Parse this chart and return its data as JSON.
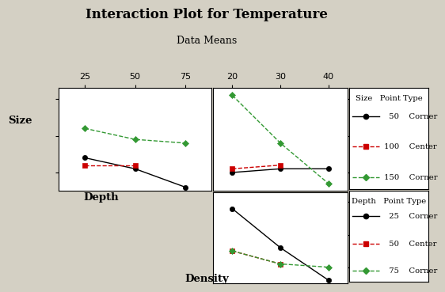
{
  "title": "Interaction Plot for Temperature",
  "subtitle": "Data Means",
  "xlabel": "Density",
  "ylabel_left": "Size",
  "ylabel_mid": "Depth",
  "bg_color": "#d4d0c4",
  "top_left": {
    "xlabel_vals": [
      25,
      50,
      75
    ],
    "xlim": [
      12,
      88
    ],
    "ylim": [
      52.5,
      66.5
    ],
    "yticks": [
      55,
      60,
      65
    ],
    "series": [
      {
        "color": "#000000",
        "ls": "-",
        "marker": "o",
        "x": [
          25,
          50,
          75
        ],
        "y": [
          57.0,
          55.5,
          53.0
        ]
      },
      {
        "color": "#cc0000",
        "ls": "--",
        "marker": "s",
        "x": [
          25,
          50
        ],
        "y": [
          56.0,
          56.0
        ]
      },
      {
        "color": "#339933",
        "ls": "--",
        "marker": "D",
        "x": [
          25,
          50,
          75
        ],
        "y": [
          61.0,
          59.5,
          59.0
        ]
      }
    ]
  },
  "top_right": {
    "xlabel_vals": [
      20,
      30,
      40
    ],
    "xlim": [
      16,
      44
    ],
    "ylim": [
      52.5,
      66.5
    ],
    "yticks": [
      55,
      60,
      65
    ],
    "series": [
      {
        "color": "#000000",
        "ls": "-",
        "marker": "o",
        "x": [
          20,
          30,
          40
        ],
        "y": [
          55.0,
          55.5,
          55.5
        ]
      },
      {
        "color": "#cc0000",
        "ls": "--",
        "marker": "s",
        "x": [
          20,
          30
        ],
        "y": [
          55.5,
          56.0
        ]
      },
      {
        "color": "#339933",
        "ls": "--",
        "marker": "D",
        "x": [
          20,
          30,
          40
        ],
        "y": [
          65.5,
          59.0,
          53.5
        ]
      }
    ]
  },
  "bot_right": {
    "xlabel_vals": [
      20,
      30,
      40
    ],
    "xlim": [
      16,
      44
    ],
    "ylim": [
      52.5,
      66.5
    ],
    "yticks": [
      55,
      60,
      65
    ],
    "series": [
      {
        "color": "#000000",
        "ls": "-",
        "marker": "o",
        "x": [
          20,
          30,
          40
        ],
        "y": [
          64.0,
          58.0,
          53.0
        ]
      },
      {
        "color": "#cc0000",
        "ls": "--",
        "marker": "s",
        "x": [
          20,
          30
        ],
        "y": [
          57.5,
          55.5
        ]
      },
      {
        "color": "#339933",
        "ls": "--",
        "marker": "D",
        "x": [
          20,
          30,
          40
        ],
        "y": [
          57.5,
          55.5,
          55.0
        ]
      }
    ]
  },
  "legend_top": {
    "title": "Size   Point Type",
    "entries": [
      {
        "label": "  50    Corner",
        "color": "#000000",
        "ls": "-",
        "marker": "o"
      },
      {
        "label": "100    Center",
        "color": "#cc0000",
        "ls": "--",
        "marker": "s"
      },
      {
        "label": "150    Corner",
        "color": "#339933",
        "ls": "--",
        "marker": "D"
      }
    ]
  },
  "legend_bot": {
    "title": "Depth   Point Type",
    "entries": [
      {
        "label": "  25    Corner",
        "color": "#000000",
        "ls": "-",
        "marker": "o"
      },
      {
        "label": "  50    Center",
        "color": "#cc0000",
        "ls": "--",
        "marker": "s"
      },
      {
        "label": "  75    Corner",
        "color": "#339933",
        "ls": "--",
        "marker": "D"
      }
    ]
  }
}
